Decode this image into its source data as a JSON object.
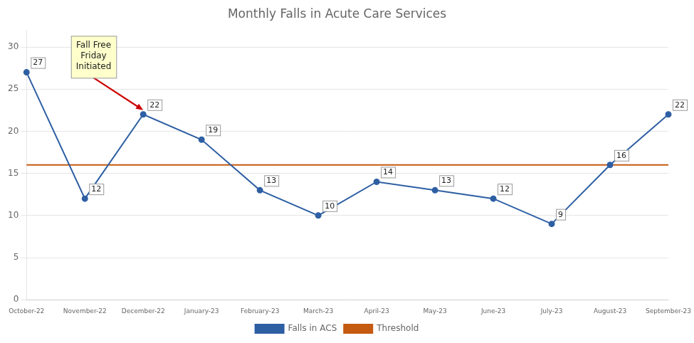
{
  "chart_data": {
    "type": "line",
    "title": "Monthly Falls in Acute Care Services",
    "categories": [
      "October-22",
      "November-22",
      "December-22",
      "January-23",
      "February-23",
      "March-23",
      "April-23",
      "May-23",
      "June-23",
      "July-23",
      "August-23",
      "September-23"
    ],
    "series": [
      {
        "name": "Falls in ACS",
        "color": "#2E5FA3",
        "marker": "circle",
        "data_labels": true,
        "values": [
          27,
          12,
          22,
          19,
          13,
          10,
          14,
          13,
          12,
          9,
          16,
          22
        ]
      },
      {
        "name": "Threshold",
        "color": "#C55A11",
        "marker": "none",
        "values": [
          16,
          16,
          16,
          16,
          16,
          16,
          16,
          16,
          16,
          16,
          16,
          16
        ]
      }
    ],
    "annotations": [
      {
        "text": "Fall Free\nFriday\nInitiated",
        "category": "December-22",
        "value": 22,
        "color": "#CC0000"
      }
    ],
    "ylim": [
      0,
      32
    ],
    "yticks": [
      0,
      5,
      10,
      15,
      20,
      25,
      30
    ],
    "grid": true,
    "legend": "bottom"
  }
}
